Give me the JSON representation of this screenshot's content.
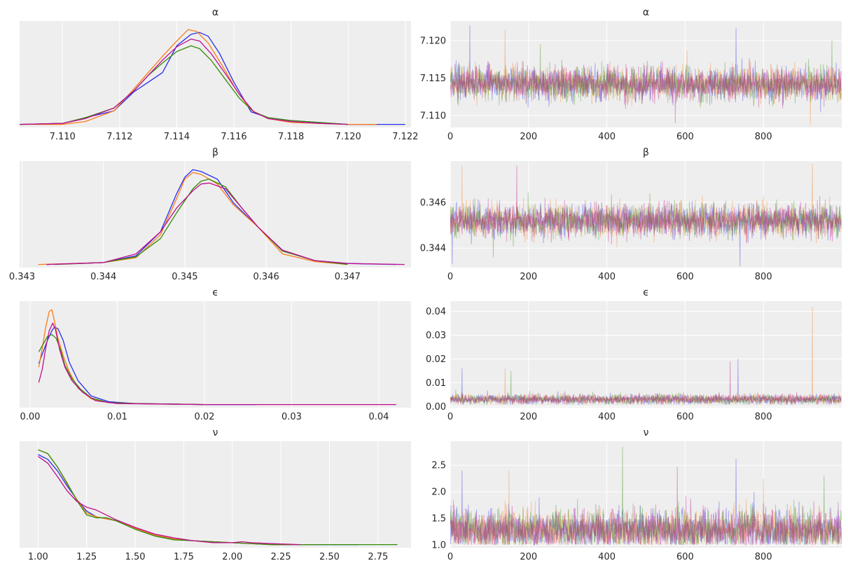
{
  "chart_data": [
    {
      "type": "line",
      "panel": "density",
      "title": "α",
      "xlim": [
        7.1085,
        7.1222
      ],
      "ylim": [
        0,
        1
      ],
      "xticks": [
        7.11,
        7.112,
        7.114,
        7.116,
        7.118,
        7.12,
        7.122
      ],
      "xtick_labels": [
        "7.110",
        "7.112",
        "7.114",
        "7.116",
        "7.118",
        "7.120",
        "7.122"
      ],
      "yticks_visible": false,
      "grid": true,
      "series": [
        {
          "color": "#2a2eec",
          "x": [
            7.1085,
            7.11,
            7.1108,
            7.1118,
            7.1125,
            7.113,
            7.1135,
            7.114,
            7.1145,
            7.1148,
            7.1151,
            7.1155,
            7.116,
            7.1166,
            7.1172,
            7.118,
            7.12,
            7.122
          ],
          "y": [
            0.01,
            0.02,
            0.08,
            0.15,
            0.35,
            0.45,
            0.55,
            0.83,
            0.95,
            0.97,
            0.93,
            0.75,
            0.45,
            0.14,
            0.08,
            0.05,
            0.01,
            0.01
          ]
        },
        {
          "color": "#fa7c17",
          "x": [
            7.1085,
            7.11,
            7.1108,
            7.1118,
            7.1125,
            7.113,
            7.1135,
            7.114,
            7.1144,
            7.1147,
            7.1151,
            7.1156,
            7.1161,
            7.1166,
            7.1172,
            7.118,
            7.12,
            7.121
          ],
          "y": [
            0.01,
            0.01,
            0.04,
            0.15,
            0.38,
            0.55,
            0.72,
            0.88,
            1.0,
            0.98,
            0.86,
            0.62,
            0.36,
            0.16,
            0.07,
            0.03,
            0.01,
            0.01
          ]
        },
        {
          "color": "#328c06",
          "x": [
            7.1085,
            7.11,
            7.1108,
            7.1118,
            7.1125,
            7.113,
            7.1135,
            7.114,
            7.1145,
            7.1148,
            7.1152,
            7.1157,
            7.1162,
            7.1167,
            7.1172,
            7.118,
            7.119,
            7.12
          ],
          "y": [
            0.01,
            0.02,
            0.08,
            0.18,
            0.36,
            0.52,
            0.65,
            0.77,
            0.83,
            0.8,
            0.68,
            0.48,
            0.28,
            0.14,
            0.08,
            0.05,
            0.03,
            0.01
          ]
        },
        {
          "color": "#c10c90",
          "x": [
            7.1085,
            7.11,
            7.1108,
            7.1118,
            7.1125,
            7.113,
            7.1135,
            7.114,
            7.1145,
            7.1148,
            7.1152,
            7.1157,
            7.1162,
            7.1167,
            7.1172,
            7.118,
            7.119,
            7.12
          ],
          "y": [
            0.01,
            0.02,
            0.07,
            0.18,
            0.36,
            0.52,
            0.68,
            0.82,
            0.9,
            0.88,
            0.75,
            0.54,
            0.32,
            0.14,
            0.07,
            0.04,
            0.02,
            0.01
          ]
        }
      ]
    },
    {
      "type": "line",
      "panel": "trace",
      "title": "α",
      "xlim": [
        0,
        1000
      ],
      "ylim": [
        7.1084,
        7.1226
      ],
      "xticks": [
        0,
        200,
        400,
        600,
        800
      ],
      "xtick_labels": [
        "0",
        "200",
        "400",
        "600",
        "800"
      ],
      "yticks": [
        7.11,
        7.115,
        7.12
      ],
      "ytick_labels": [
        "7.110",
        "7.115",
        "7.120"
      ],
      "grid": true,
      "alpha": 0.35,
      "center": 7.1142,
      "spread": 0.0011,
      "spikes": [
        [
          50,
          7.122
        ],
        [
          140,
          7.1215
        ],
        [
          230,
          7.1195
        ],
        [
          575,
          7.109
        ],
        [
          730,
          7.1217
        ],
        [
          920,
          7.1087
        ],
        [
          975,
          7.12
        ]
      ],
      "series": [
        {
          "color": "#2a2eec"
        },
        {
          "color": "#fa7c17"
        },
        {
          "color": "#328c06"
        },
        {
          "color": "#c10c90"
        }
      ]
    },
    {
      "type": "line",
      "panel": "density",
      "title": "β",
      "xlim": [
        0.34297,
        0.34778
      ],
      "ylim": [
        0,
        1
      ],
      "xticks": [
        0.343,
        0.344,
        0.345,
        0.346,
        0.347
      ],
      "xtick_labels": [
        "0.343",
        "0.344",
        "0.345",
        "0.346",
        "0.347"
      ],
      "yticks_visible": false,
      "grid": true,
      "series": [
        {
          "color": "#2a2eec",
          "x": [
            0.3433,
            0.344,
            0.3444,
            0.3447,
            0.3449,
            0.345,
            0.3451,
            0.3452,
            0.3454,
            0.3456,
            0.3459,
            0.3462,
            0.3466,
            0.347,
            0.3476
          ],
          "y": [
            0.01,
            0.03,
            0.1,
            0.35,
            0.75,
            0.92,
            1.0,
            0.98,
            0.9,
            0.65,
            0.4,
            0.15,
            0.05,
            0.02,
            0.01
          ]
        },
        {
          "color": "#fa7c17",
          "x": [
            0.3432,
            0.344,
            0.3444,
            0.3447,
            0.3449,
            0.345,
            0.3451,
            0.3452,
            0.3454,
            0.3456,
            0.3459,
            0.3462,
            0.3466,
            0.347
          ],
          "y": [
            0.01,
            0.03,
            0.08,
            0.32,
            0.7,
            0.9,
            0.97,
            0.95,
            0.85,
            0.63,
            0.4,
            0.12,
            0.04,
            0.01
          ]
        },
        {
          "color": "#328c06",
          "x": [
            0.3434,
            0.344,
            0.3444,
            0.3447,
            0.3449,
            0.3451,
            0.3452,
            0.3453,
            0.3455,
            0.3457,
            0.3459,
            0.3462,
            0.3466,
            0.347
          ],
          "y": [
            0.01,
            0.03,
            0.09,
            0.28,
            0.55,
            0.8,
            0.88,
            0.9,
            0.82,
            0.6,
            0.4,
            0.15,
            0.05,
            0.01
          ]
        },
        {
          "color": "#c10c90",
          "x": [
            0.3433,
            0.344,
            0.3444,
            0.3447,
            0.3449,
            0.3451,
            0.3452,
            0.3453,
            0.3455,
            0.3457,
            0.3459,
            0.3462,
            0.3466,
            0.347,
            0.3477
          ],
          "y": [
            0.01,
            0.03,
            0.12,
            0.35,
            0.6,
            0.78,
            0.85,
            0.86,
            0.8,
            0.6,
            0.4,
            0.16,
            0.05,
            0.02,
            0.01
          ]
        }
      ]
    },
    {
      "type": "line",
      "panel": "trace",
      "title": "β",
      "xlim": [
        0,
        1000
      ],
      "ylim": [
        0.34315,
        0.3478
      ],
      "xticks": [
        0,
        200,
        400,
        600,
        800
      ],
      "xtick_labels": [
        "0",
        "200",
        "400",
        "600",
        "800"
      ],
      "yticks": [
        0.344,
        0.346
      ],
      "ytick_labels": [
        "0.344",
        "0.346"
      ],
      "grid": true,
      "alpha": 0.35,
      "center": 0.3452,
      "spread": 0.00035,
      "spikes": [
        [
          5,
          0.3433
        ],
        [
          30,
          0.3476
        ],
        [
          110,
          0.3436
        ],
        [
          170,
          0.3476
        ],
        [
          740,
          0.3432
        ],
        [
          925,
          0.3477
        ]
      ],
      "series": [
        {
          "color": "#2a2eec"
        },
        {
          "color": "#fa7c17"
        },
        {
          "color": "#328c06"
        },
        {
          "color": "#c10c90"
        }
      ]
    },
    {
      "type": "line",
      "panel": "density",
      "title": "ϵ",
      "xlim": [
        -0.0012,
        0.0437
      ],
      "ylim": [
        0,
        1
      ],
      "xticks": [
        0.0,
        0.01,
        0.02,
        0.03,
        0.04
      ],
      "xtick_labels": [
        "0.00",
        "0.01",
        "0.02",
        "0.03",
        "0.04"
      ],
      "yticks_visible": false,
      "grid": true,
      "series": [
        {
          "color": "#2a2eec",
          "x": [
            0.001,
            0.0015,
            0.002,
            0.0025,
            0.0028,
            0.0032,
            0.0038,
            0.0045,
            0.0055,
            0.007,
            0.009,
            0.012,
            0.02,
            0.026
          ],
          "y": [
            0.44,
            0.56,
            0.68,
            0.78,
            0.82,
            0.8,
            0.68,
            0.45,
            0.26,
            0.1,
            0.04,
            0.02,
            0.01,
            0.01
          ]
        },
        {
          "color": "#fa7c17",
          "x": [
            0.001,
            0.0014,
            0.0018,
            0.0022,
            0.0025,
            0.0028,
            0.0032,
            0.0038,
            0.0045,
            0.0055,
            0.007,
            0.009,
            0.012,
            0.02
          ],
          "y": [
            0.4,
            0.6,
            0.82,
            0.98,
            1.0,
            0.88,
            0.7,
            0.52,
            0.35,
            0.18,
            0.07,
            0.03,
            0.02,
            0.01
          ]
        },
        {
          "color": "#328c06",
          "x": [
            0.001,
            0.0015,
            0.002,
            0.0025,
            0.003,
            0.0035,
            0.004,
            0.0048,
            0.0058,
            0.007,
            0.009,
            0.012,
            0.02
          ],
          "y": [
            0.56,
            0.64,
            0.72,
            0.74,
            0.7,
            0.58,
            0.42,
            0.28,
            0.17,
            0.08,
            0.03,
            0.02,
            0.01
          ]
        },
        {
          "color": "#c10c90",
          "x": [
            0.001,
            0.0014,
            0.0018,
            0.0022,
            0.0026,
            0.0029,
            0.0034,
            0.004,
            0.0048,
            0.006,
            0.0075,
            0.01,
            0.02,
            0.03,
            0.042
          ],
          "y": [
            0.24,
            0.38,
            0.6,
            0.78,
            0.86,
            0.8,
            0.58,
            0.4,
            0.26,
            0.14,
            0.05,
            0.02,
            0.01,
            0.01,
            0.01
          ]
        }
      ]
    },
    {
      "type": "line",
      "panel": "trace",
      "title": "ϵ",
      "xlim": [
        0,
        1000
      ],
      "ylim": [
        -0.0005,
        0.0443
      ],
      "xticks": [
        0,
        200,
        400,
        600,
        800
      ],
      "xtick_labels": [
        "0",
        "200",
        "400",
        "600",
        "800"
      ],
      "yticks": [
        0.0,
        0.01,
        0.02,
        0.03,
        0.04
      ],
      "ytick_labels": [
        "0.00",
        "0.01",
        "0.02",
        "0.03",
        "0.04"
      ],
      "grid": true,
      "alpha": 0.35,
      "center": 0.003,
      "spread": 0.0011,
      "spikes": [
        [
          30,
          0.016
        ],
        [
          140,
          0.016
        ],
        [
          155,
          0.015
        ],
        [
          715,
          0.019
        ],
        [
          735,
          0.02
        ],
        [
          925,
          0.042
        ]
      ],
      "series": [
        {
          "color": "#2a2eec"
        },
        {
          "color": "#fa7c17"
        },
        {
          "color": "#328c06"
        },
        {
          "color": "#c10c90"
        }
      ]
    },
    {
      "type": "line",
      "panel": "density",
      "title": "ν",
      "xlim": [
        0.905,
        2.92
      ],
      "ylim": [
        0,
        1
      ],
      "xticks": [
        1.0,
        1.25,
        1.5,
        1.75,
        2.0,
        2.25,
        2.5,
        2.75
      ],
      "xtick_labels": [
        "1.00",
        "1.25",
        "1.50",
        "1.75",
        "2.00",
        "2.25",
        "2.50",
        "2.75"
      ],
      "yticks_visible": false,
      "grid": true,
      "series": [
        {
          "color": "#2a2eec",
          "x": [
            1.0,
            1.05,
            1.1,
            1.15,
            1.2,
            1.25,
            1.3,
            1.35,
            1.4,
            1.5,
            1.6,
            1.7,
            1.8,
            1.9,
            2.0,
            2.2,
            2.4,
            2.65
          ],
          "y": [
            0.95,
            0.9,
            0.78,
            0.62,
            0.48,
            0.36,
            0.3,
            0.28,
            0.26,
            0.18,
            0.11,
            0.07,
            0.05,
            0.04,
            0.03,
            0.01,
            0.01,
            0.01
          ]
        },
        {
          "color": "#fa7c17",
          "x": [
            1.0,
            1.05,
            1.1,
            1.15,
            1.2,
            1.25,
            1.3,
            1.35,
            1.4,
            1.5,
            1.6,
            1.7,
            1.8,
            1.9,
            2.0,
            2.2,
            2.4
          ],
          "y": [
            1.0,
            0.96,
            0.82,
            0.64,
            0.48,
            0.34,
            0.3,
            0.28,
            0.26,
            0.18,
            0.11,
            0.07,
            0.05,
            0.04,
            0.03,
            0.01,
            0.01
          ]
        },
        {
          "color": "#328c06",
          "x": [
            1.0,
            1.05,
            1.1,
            1.15,
            1.2,
            1.25,
            1.3,
            1.35,
            1.4,
            1.5,
            1.6,
            1.7,
            1.8,
            1.9,
            2.0,
            2.2,
            2.4,
            2.6,
            2.85
          ],
          "y": [
            1.0,
            0.96,
            0.82,
            0.65,
            0.47,
            0.32,
            0.29,
            0.29,
            0.26,
            0.17,
            0.1,
            0.06,
            0.05,
            0.04,
            0.03,
            0.01,
            0.01,
            0.01,
            0.01
          ]
        },
        {
          "color": "#c10c90",
          "x": [
            1.0,
            1.05,
            1.1,
            1.15,
            1.2,
            1.25,
            1.3,
            1.35,
            1.4,
            1.5,
            1.6,
            1.7,
            1.8,
            1.9,
            2.0,
            2.05,
            2.1,
            2.2,
            2.35
          ],
          "y": [
            0.93,
            0.86,
            0.72,
            0.57,
            0.46,
            0.4,
            0.37,
            0.32,
            0.27,
            0.19,
            0.12,
            0.08,
            0.05,
            0.03,
            0.03,
            0.04,
            0.03,
            0.02,
            0.01
          ]
        }
      ]
    },
    {
      "type": "line",
      "panel": "trace",
      "title": "ν",
      "xlim": [
        0,
        1000
      ],
      "ylim": [
        0.95,
        2.95
      ],
      "xticks": [
        0,
        200,
        400,
        600,
        800
      ],
      "xtick_labels": [
        "0",
        "200",
        "400",
        "600",
        "800"
      ],
      "yticks": [
        1.0,
        1.5,
        2.0,
        2.5
      ],
      "ytick_labels": [
        "1.0",
        "1.5",
        "2.0",
        "2.5"
      ],
      "grid": true,
      "alpha": 0.35,
      "center": 1.28,
      "spread": 0.2,
      "spikes": [
        [
          30,
          2.4
        ],
        [
          150,
          2.4
        ],
        [
          440,
          2.85
        ],
        [
          580,
          2.47
        ],
        [
          730,
          2.62
        ],
        [
          800,
          2.25
        ],
        [
          955,
          2.3
        ]
      ],
      "series": [
        {
          "color": "#2a2eec"
        },
        {
          "color": "#fa7c17"
        },
        {
          "color": "#328c06"
        },
        {
          "color": "#c10c90"
        }
      ]
    }
  ]
}
